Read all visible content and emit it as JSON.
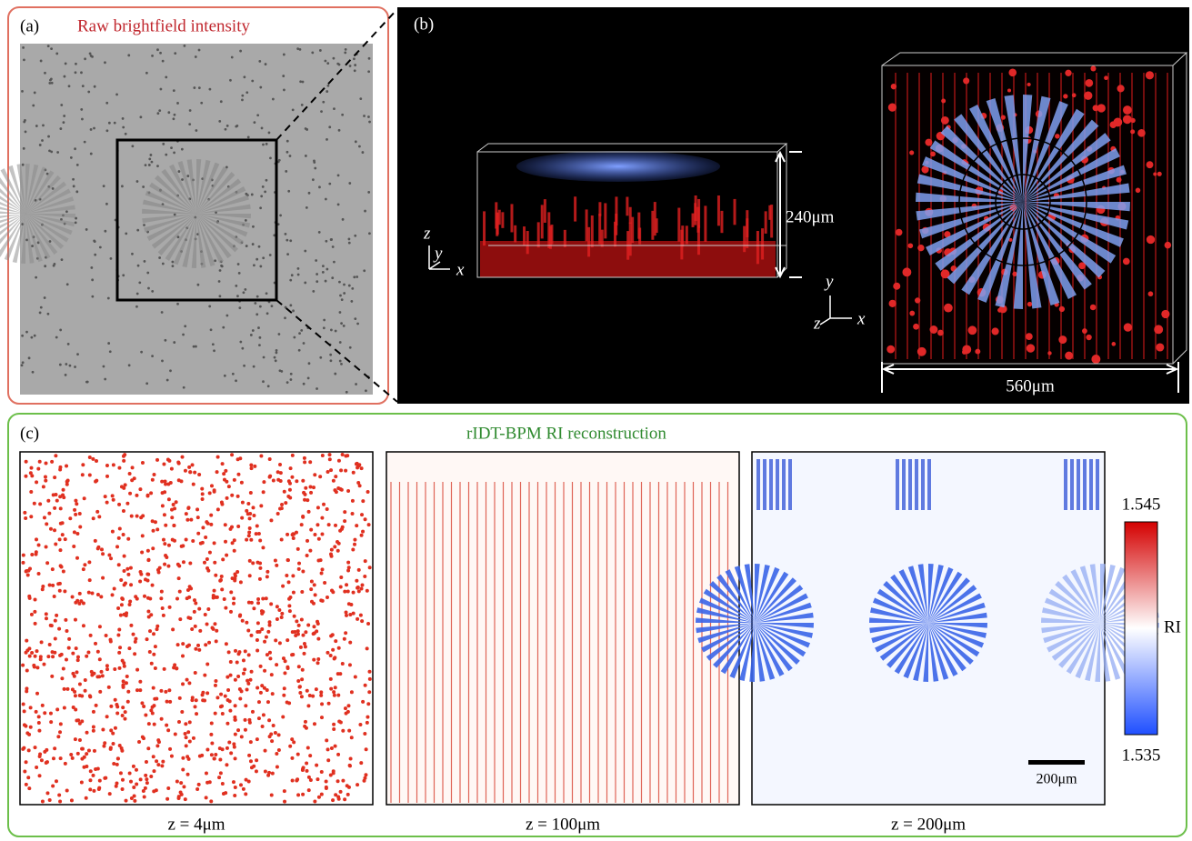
{
  "panel_a": {
    "label": "(a)",
    "title": "Raw brightfield intensity"
  },
  "panel_b": {
    "label": "(b)",
    "height_label": "240μm",
    "width_label": "560μm",
    "axes_left": {
      "z": "z",
      "y": "y",
      "x": "x"
    },
    "axes_right": {
      "y": "y",
      "z": "z",
      "x": "x"
    }
  },
  "panel_c": {
    "label": "(c)",
    "title": "rIDT-BPM RI reconstruction",
    "slices": [
      "z = 4μm",
      "z = 100μm",
      "z = 200μm"
    ],
    "colorbar": {
      "max": 1.545,
      "min": 1.535,
      "label": "RI"
    },
    "scale_bar": "200μm"
  }
}
